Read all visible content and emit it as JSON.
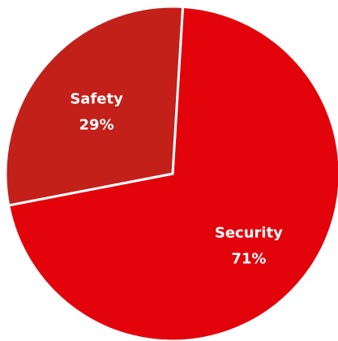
{
  "chart_data": {
    "type": "pie",
    "title": "",
    "slices": [
      {
        "label": "Security",
        "value": 71,
        "value_label": "71%",
        "color": "#E3040B"
      },
      {
        "label": "Safety",
        "value": 29,
        "value_label": "29%",
        "color": "#C3201A"
      }
    ],
    "separator_color": "#ffffff",
    "legend": "none"
  }
}
